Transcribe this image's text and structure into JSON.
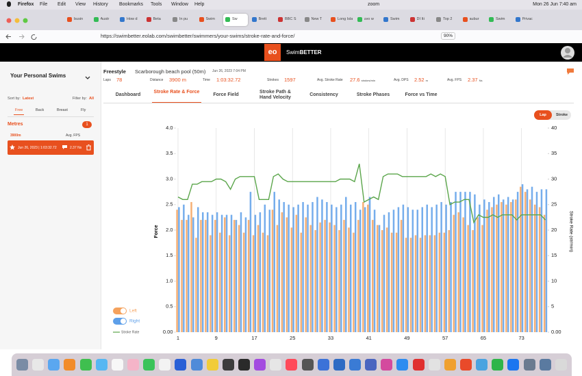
{
  "menubar": {
    "app": "Firefox",
    "items": [
      "File",
      "Edit",
      "View",
      "History",
      "Bookmarks",
      "Tools",
      "Window",
      "Help"
    ],
    "zoom": "zoom",
    "clock": "Mon 26 Jun  7:40 am"
  },
  "browser": {
    "tabs": [
      "busin",
      "Austr",
      "How d",
      "Beta",
      "In pu",
      "Swim",
      "Sw",
      "Brett",
      "BBC S",
      "New T",
      "Long Island",
      "uvo w",
      "Swim",
      "DI Iti",
      "Top 2",
      "aubur",
      "Swim",
      "Privac"
    ],
    "url": "https://swimbetter.eolab.com/swimbetter/swimmers/your-swims/stroke-rate-and-force/",
    "zoom": "90%"
  },
  "app": {
    "logo": "eo",
    "brand_prefix": "Swim",
    "brand": "BETTER"
  },
  "sidebar": {
    "title": "Your Personal Swims",
    "sort_label": "Sort by:",
    "sort_value": "Latest",
    "filter_label": "Filter by:",
    "filter_value": "All",
    "strokes": [
      "Free",
      "Back",
      "Breast",
      "Fly"
    ],
    "unit": "Metres",
    "count": "1",
    "distance": "3900m",
    "metric": "Avg. FPS",
    "swim_date": "Jun 26, 2023 | 1:03:32.72",
    "swim_value": "2.37 Ns"
  },
  "swim": {
    "stroke": "Freestyle",
    "pool": "Scarborough beach pool (50m)",
    "date": "Jun 26, 2023  7:04 PM",
    "stats": [
      {
        "label": "Laps",
        "value": "78"
      },
      {
        "label": "Distance",
        "value": "3900 m"
      },
      {
        "label": "Time",
        "value": "1:03:32.72"
      },
      {
        "label": "Strokes",
        "value": "1597"
      },
      {
        "label": "Avg. Stroke Rate",
        "value": "27.6",
        "unit": "strokes/min"
      },
      {
        "label": "Avg. DPS",
        "value": "2.52",
        "unit": "m"
      },
      {
        "label": "Avg. FPS",
        "value": "2.37",
        "unit": "Ns"
      }
    ]
  },
  "tabs": [
    "Dashboard",
    "Stroke Rate & Force",
    "Force Field",
    "Stroke Path & Hand Velocity",
    "Consistency",
    "Stroke Phases",
    "Force vs Time"
  ],
  "view_toggle": [
    "Lap",
    "Stroke"
  ],
  "chart_data": {
    "type": "bar",
    "y_label": "Force",
    "y2_label": "Stroke Rate (str/min)",
    "x": [
      1,
      2,
      3,
      4,
      5,
      6,
      7,
      8,
      9,
      10,
      11,
      12,
      13,
      14,
      15,
      16,
      17,
      18,
      19,
      20,
      21,
      22,
      23,
      24,
      25,
      26,
      27,
      28,
      29,
      30,
      31,
      32,
      33,
      34,
      35,
      36,
      37,
      38,
      39,
      40,
      41,
      42,
      43,
      44,
      45,
      46,
      47,
      48,
      49,
      50,
      51,
      52,
      53,
      54,
      55,
      56,
      57,
      58,
      59,
      60,
      61,
      62,
      63,
      64,
      65,
      66,
      67,
      68,
      69,
      70,
      71,
      72,
      73,
      74,
      75,
      76,
      77,
      78
    ],
    "xlim": [
      0.5,
      78.5
    ],
    "xticks": [
      1,
      9,
      17,
      25,
      33,
      41,
      49,
      57,
      65,
      73
    ],
    "ylim": [
      0,
      4
    ],
    "yticks": [
      {
        "value": 0,
        "label": "0.00"
      },
      0.5,
      {
        "value": 1,
        "label": "1.0"
      },
      1.5,
      {
        "value": 2,
        "label": "2.0"
      },
      2.5,
      {
        "value": 3,
        "label": "3.0"
      },
      3.5,
      {
        "value": 4,
        "label": "4.0"
      }
    ],
    "y2lim": [
      0,
      40
    ],
    "y2ticks": [
      {
        "value": 0,
        "label": "0.00"
      },
      5,
      10,
      15,
      20,
      25,
      30,
      35,
      40
    ],
    "grid": "x",
    "legend": "bottom-left",
    "series": [
      {
        "name": "Left",
        "color": "#f5a25d",
        "values": [
          2.4,
          2.2,
          2.2,
          2.55,
          1.85,
          2.2,
          2.2,
          1.9,
          2.2,
          1.95,
          2.25,
          1.9,
          2.2,
          2.1,
          1.95,
          2.2,
          1.9,
          2.1,
          1.95,
          1.9,
          2.4,
          2.1,
          2.35,
          2.25,
          2.05,
          2.3,
          1.95,
          2.25,
          2.1,
          2.0,
          2.15,
          2.2,
          2.15,
          2.1,
          2.0,
          2.2,
          2.05,
          1.95,
          2.2,
          2.55,
          2.5,
          2.2,
          2.1,
          2.0,
          2.05,
          1.95,
          1.95,
          2.2,
          1.85,
          1.85,
          1.9,
          1.85,
          1.9,
          1.9,
          1.9,
          1.95,
          1.95,
          2.0,
          2.3,
          2.35,
          2.25,
          2.1,
          2.0,
          2.25,
          2.1,
          2.4,
          2.45,
          2.5,
          2.55,
          2.5,
          2.55,
          2.6,
          2.85,
          2.75,
          2.6,
          2.5,
          2.45,
          2.3
        ]
      },
      {
        "name": "Right",
        "color": "#5d9fe9",
        "values": [
          2.45,
          2.5,
          2.3,
          2.25,
          2.45,
          2.35,
          2.35,
          2.3,
          2.35,
          2.3,
          2.3,
          2.3,
          2.2,
          2.35,
          2.25,
          2.75,
          2.3,
          2.35,
          2.5,
          2.4,
          2.75,
          2.6,
          2.55,
          2.5,
          2.45,
          2.5,
          2.55,
          2.5,
          2.55,
          2.65,
          2.6,
          2.55,
          2.5,
          2.45,
          2.5,
          2.65,
          2.5,
          2.55,
          2.4,
          2.45,
          2.65,
          2.4,
          2.1,
          2.3,
          2.35,
          2.4,
          2.45,
          2.5,
          2.45,
          2.4,
          2.4,
          2.45,
          2.5,
          2.45,
          2.5,
          2.55,
          2.5,
          2.55,
          2.75,
          2.75,
          2.75,
          2.75,
          2.7,
          2.5,
          2.6,
          2.55,
          2.65,
          2.7,
          2.6,
          2.65,
          2.6,
          2.75,
          2.9,
          2.8,
          2.85,
          2.75,
          2.8,
          2.8
        ]
      },
      {
        "name": "Stroke Rate",
        "type": "line",
        "axis": "y2",
        "color": "#5aa54a",
        "values": [
          26.5,
          26,
          26,
          29,
          29,
          29.5,
          29.5,
          29.5,
          30,
          30,
          29.5,
          28,
          30,
          30.5,
          30.5,
          30.5,
          30.5,
          26,
          26,
          26,
          30.5,
          31,
          30,
          29.5,
          29.5,
          29.5,
          29.5,
          29.5,
          29.5,
          29.5,
          29.5,
          29.5,
          29.5,
          29.5,
          30,
          30,
          30,
          29.5,
          33,
          25.5,
          26,
          26.5,
          26,
          30.5,
          31,
          31,
          31,
          30.5,
          30.5,
          30.5,
          30.5,
          30.5,
          30.5,
          31,
          30.5,
          31,
          30.5,
          25,
          25.5,
          25.5,
          26,
          26,
          21.5,
          23,
          22.5,
          22.5,
          23,
          22.5,
          23,
          23,
          23,
          22,
          23,
          23,
          23,
          23,
          23,
          22
        ]
      }
    ]
  }
}
